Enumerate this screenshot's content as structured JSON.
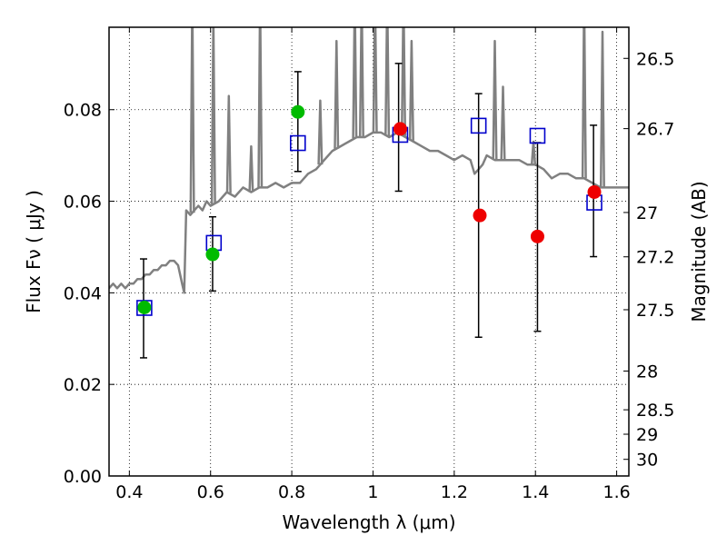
{
  "chart_data": {
    "type": "scatter",
    "xlabel": "Wavelength  λ (μm)",
    "ylabel": "Flux  Fν  ( μJy )",
    "y2label": "Magnitude (AB)",
    "xlim": [
      0.35,
      1.63
    ],
    "ylim": [
      0.0,
      0.098
    ],
    "grid": true,
    "x_ticks": [
      {
        "v": 0.4,
        "label": "0.4"
      },
      {
        "v": 0.6,
        "label": "0.6"
      },
      {
        "v": 0.8,
        "label": "0.8"
      },
      {
        "v": 1.0,
        "label": "1"
      },
      {
        "v": 1.2,
        "label": "1.2"
      },
      {
        "v": 1.4,
        "label": "1.4"
      },
      {
        "v": 1.6,
        "label": "1.6"
      }
    ],
    "y_ticks": [
      {
        "v": 0.0,
        "label": "0.00"
      },
      {
        "v": 0.02,
        "label": "0.02"
      },
      {
        "v": 0.04,
        "label": "0.04"
      },
      {
        "v": 0.06,
        "label": "0.06"
      },
      {
        "v": 0.08,
        "label": "0.08"
      }
    ],
    "y2_ticks": [
      {
        "mag": 26.5,
        "label": "26.5"
      },
      {
        "mag": 26.7,
        "label": "26.7"
      },
      {
        "mag": 27,
        "label": "27"
      },
      {
        "mag": 27.2,
        "label": "27.2"
      },
      {
        "mag": 27.5,
        "label": "27.5"
      },
      {
        "mag": 28,
        "label": "28"
      },
      {
        "mag": 28.5,
        "label": "28.5"
      },
      {
        "mag": 29,
        "label": "29"
      },
      {
        "mag": 30,
        "label": "30"
      }
    ],
    "series": [
      {
        "kind": "line",
        "color": "#808080",
        "x": [
          0.35,
          0.36,
          0.37,
          0.38,
          0.39,
          0.4,
          0.41,
          0.42,
          0.43,
          0.44,
          0.45,
          0.46,
          0.47,
          0.48,
          0.49,
          0.5,
          0.51,
          0.52,
          0.53,
          0.535,
          0.54,
          0.55,
          0.56,
          0.57,
          0.58,
          0.59,
          0.6,
          0.62,
          0.64,
          0.66,
          0.68,
          0.7,
          0.72,
          0.74,
          0.76,
          0.78,
          0.8,
          0.82,
          0.84,
          0.86,
          0.88,
          0.9,
          0.92,
          0.94,
          0.96,
          0.98,
          1.0,
          1.02,
          1.04,
          1.06,
          1.08,
          1.1,
          1.12,
          1.14,
          1.16,
          1.18,
          1.2,
          1.22,
          1.24,
          1.25,
          1.26,
          1.27,
          1.28,
          1.3,
          1.32,
          1.34,
          1.36,
          1.38,
          1.4,
          1.42,
          1.44,
          1.46,
          1.48,
          1.5,
          1.52,
          1.54,
          1.56,
          1.58,
          1.6,
          1.63
        ],
        "y": [
          0.041,
          0.042,
          0.041,
          0.042,
          0.041,
          0.042,
          0.042,
          0.043,
          0.043,
          0.044,
          0.044,
          0.045,
          0.045,
          0.046,
          0.046,
          0.047,
          0.047,
          0.046,
          0.042,
          0.04,
          0.058,
          0.057,
          0.058,
          0.059,
          0.058,
          0.06,
          0.059,
          0.06,
          0.062,
          0.061,
          0.063,
          0.062,
          0.063,
          0.063,
          0.064,
          0.063,
          0.064,
          0.064,
          0.066,
          0.067,
          0.069,
          0.071,
          0.072,
          0.073,
          0.074,
          0.074,
          0.075,
          0.075,
          0.074,
          0.075,
          0.074,
          0.073,
          0.072,
          0.071,
          0.071,
          0.07,
          0.069,
          0.07,
          0.069,
          0.066,
          0.067,
          0.068,
          0.07,
          0.069,
          0.069,
          0.069,
          0.069,
          0.068,
          0.068,
          0.067,
          0.065,
          0.066,
          0.066,
          0.065,
          0.065,
          0.064,
          0.063,
          0.063,
          0.063,
          0.063
        ]
      },
      {
        "kind": "spikes",
        "color": "#808080",
        "points": [
          {
            "x": 0.555,
            "y": 0.105
          },
          {
            "x": 0.607,
            "y": 0.1
          },
          {
            "x": 0.645,
            "y": 0.083
          },
          {
            "x": 0.7,
            "y": 0.072
          },
          {
            "x": 0.722,
            "y": 0.105
          },
          {
            "x": 0.87,
            "y": 0.082
          },
          {
            "x": 0.91,
            "y": 0.095
          },
          {
            "x": 0.955,
            "y": 0.105
          },
          {
            "x": 0.972,
            "y": 0.105
          },
          {
            "x": 1.005,
            "y": 0.105
          },
          {
            "x": 1.035,
            "y": 0.105
          },
          {
            "x": 1.075,
            "y": 0.105
          },
          {
            "x": 1.095,
            "y": 0.095
          },
          {
            "x": 1.3,
            "y": 0.095
          },
          {
            "x": 1.32,
            "y": 0.085
          },
          {
            "x": 1.395,
            "y": 0.073
          },
          {
            "x": 1.52,
            "y": 0.105
          },
          {
            "x": 1.565,
            "y": 0.097
          }
        ]
      },
      {
        "kind": "errorbar",
        "color": "#000000",
        "points": [
          {
            "x": 0.435,
            "lo": 0.0258,
            "hi": 0.0474
          },
          {
            "x": 0.605,
            "lo": 0.0404,
            "hi": 0.0566
          },
          {
            "x": 0.815,
            "lo": 0.0665,
            "hi": 0.0883
          },
          {
            "x": 1.063,
            "lo": 0.0622,
            "hi": 0.0901
          },
          {
            "x": 1.26,
            "lo": 0.0303,
            "hi": 0.0835
          },
          {
            "x": 1.405,
            "lo": 0.0316,
            "hi": 0.0728
          },
          {
            "x": 1.543,
            "lo": 0.0479,
            "hi": 0.0766
          }
        ]
      },
      {
        "kind": "square",
        "color": "#0000cc",
        "x": [
          0.437,
          0.608,
          0.815,
          1.067,
          1.26,
          1.405,
          1.545
        ],
        "y": [
          0.0367,
          0.0509,
          0.0727,
          0.0745,
          0.0765,
          0.0743,
          0.0597
        ]
      },
      {
        "kind": "circle",
        "color": "#00bb00",
        "x": [
          0.437,
          0.605,
          0.815
        ],
        "y": [
          0.0368,
          0.0484,
          0.0795
        ]
      },
      {
        "kind": "circle",
        "color": "#ee0000",
        "x": [
          1.067,
          1.263,
          1.405,
          1.545
        ],
        "y": [
          0.0758,
          0.0569,
          0.0523,
          0.062
        ]
      }
    ]
  }
}
